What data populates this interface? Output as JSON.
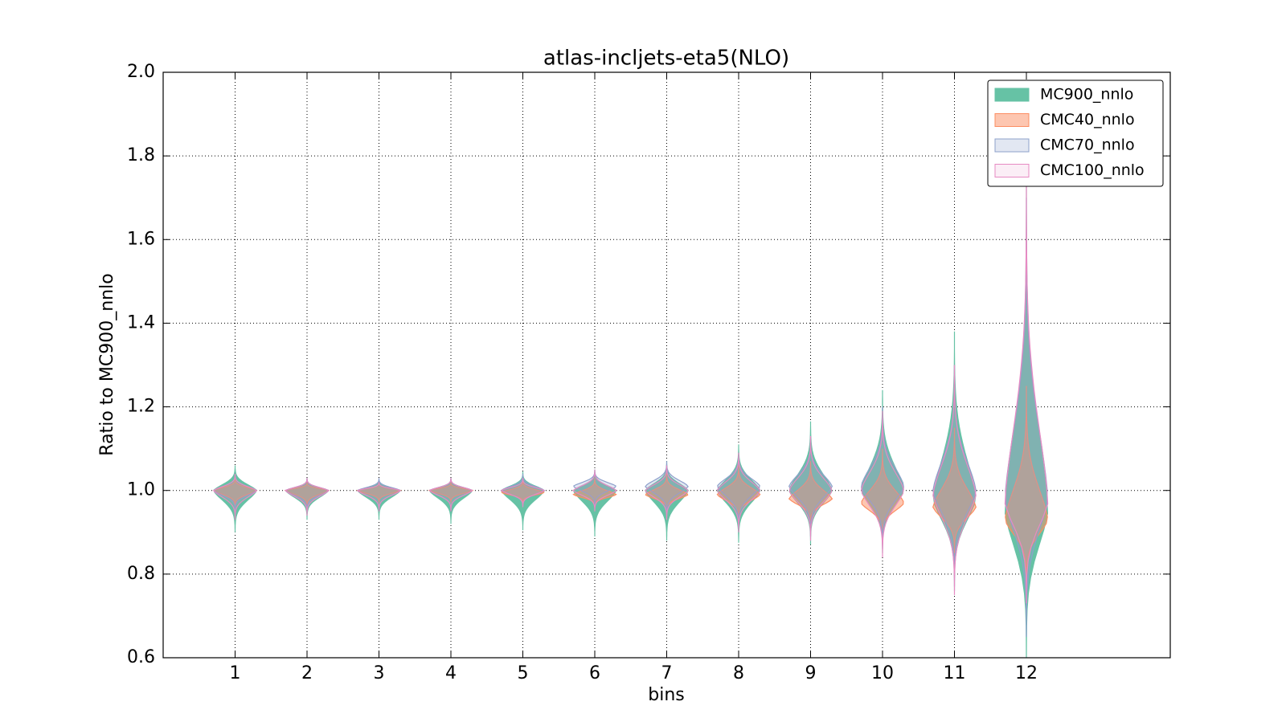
{
  "chart_data": {
    "type": "violin",
    "title": "atlas-incljets-eta5(NLO)",
    "xlabel": "bins",
    "ylabel": "Ratio to MC900_nnlo",
    "x": [
      1,
      2,
      3,
      4,
      5,
      6,
      7,
      8,
      9,
      10,
      11,
      12
    ],
    "xlim": [
      0,
      14
    ],
    "xticks": [
      1,
      2,
      3,
      4,
      5,
      6,
      7,
      8,
      9,
      10,
      11,
      12
    ],
    "ylim": [
      0.6,
      2.0
    ],
    "yticks": [
      0.6,
      0.8,
      {
        "value": 1.0,
        "label": "1.0"
      },
      1.2,
      1.4,
      1.6,
      1.8,
      {
        "value": 2.0,
        "label": "2.0"
      }
    ],
    "grid": true,
    "legend": "upper right",
    "series": [
      {
        "name": "MC900_nnlo",
        "color": "#66c2a5",
        "alpha": 1,
        "min": [
          0.9,
          0.93,
          0.93,
          0.92,
          0.905,
          0.89,
          0.88,
          0.875,
          0.87,
          0.85,
          0.76,
          0.6
        ],
        "center": [
          1.0,
          1.0,
          1.0,
          1.0,
          1.0,
          1.0,
          1.0,
          1.0,
          1.0,
          1.0,
          0.98,
          0.95
        ],
        "max": [
          1.06,
          1.03,
          1.025,
          1.03,
          1.045,
          1.05,
          1.07,
          1.11,
          1.165,
          1.24,
          1.38,
          1.75
        ]
      },
      {
        "name": "CMC40_nnlo",
        "color": "#fc8d62",
        "alpha": 0.5,
        "min": [
          0.96,
          0.96,
          0.97,
          0.97,
          0.97,
          0.96,
          0.95,
          0.93,
          0.92,
          0.89,
          0.85,
          0.78
        ],
        "center": [
          1.0,
          1.0,
          1.0,
          1.0,
          0.995,
          0.99,
          0.99,
          0.99,
          0.98,
          0.97,
          0.96,
          0.93
        ],
        "max": [
          1.03,
          1.02,
          1.02,
          1.02,
          1.025,
          1.03,
          1.04,
          1.06,
          1.07,
          1.1,
          1.15,
          1.25
        ]
      },
      {
        "name": "CMC70_nnlo",
        "color": "#8da0cb",
        "alpha": 0.25,
        "min": [
          0.95,
          0.95,
          0.95,
          0.95,
          0.96,
          0.96,
          0.94,
          0.91,
          0.89,
          0.86,
          0.77,
          0.65
        ],
        "center": [
          1.0,
          1.0,
          1.0,
          1.0,
          1.0,
          1.01,
          1.01,
          1.01,
          1.01,
          1.01,
          1.0,
          0.98
        ],
        "max": [
          1.04,
          1.03,
          1.03,
          1.03,
          1.04,
          1.05,
          1.07,
          1.09,
          1.13,
          1.2,
          1.3,
          1.7
        ]
      },
      {
        "name": "CMC100_nnlo",
        "color": "#e78ac3",
        "alpha": 0.15,
        "min": [
          0.93,
          0.94,
          0.95,
          0.95,
          0.96,
          0.95,
          0.93,
          0.9,
          0.88,
          0.84,
          0.75,
          0.73
        ],
        "center": [
          1.0,
          1.0,
          1.0,
          1.0,
          1.0,
          1.0,
          1.0,
          1.0,
          1.0,
          1.0,
          0.99,
          0.97
        ],
        "max": [
          1.04,
          1.03,
          1.02,
          1.03,
          1.03,
          1.05,
          1.06,
          1.09,
          1.13,
          1.19,
          1.3,
          1.75
        ]
      }
    ]
  }
}
